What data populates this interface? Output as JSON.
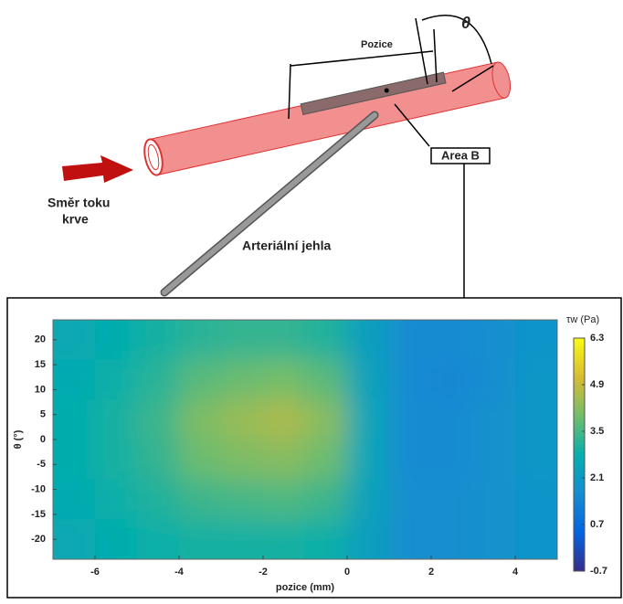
{
  "diagram": {
    "pozice": "Pozice",
    "theta": "θ",
    "area": "Area B",
    "flow_1": "Směr toku",
    "flow_2": "krve",
    "needle": "Arteriální jehla"
  },
  "chart_data": {
    "type": "heatmap",
    "x_label": "pozice (mm)",
    "y_label": "θ (°)",
    "colorbar_label": "τw (Pa)",
    "xlim": [
      -7,
      5
    ],
    "ylim": [
      -24,
      24
    ],
    "xticks": [
      -6,
      -4,
      -2,
      0,
      2,
      4
    ],
    "yticks": [
      20,
      15,
      10,
      5,
      0,
      -5,
      -10,
      -15,
      -20
    ],
    "clim": [
      -0.7,
      6.3
    ],
    "cticks": [
      6.3,
      4.9,
      3.5,
      2.1,
      0.7,
      -0.7
    ],
    "x": [
      -6.5,
      -5.5,
      -4.5,
      -3.5,
      -2.5,
      -1.5,
      -0.5,
      0.5,
      1.5,
      2.5,
      3.5,
      4.5
    ],
    "y": [
      20,
      12,
      4,
      -4,
      -12,
      -20
    ],
    "values": [
      [
        2.6,
        2.8,
        3.0,
        3.2,
        3.3,
        3.3,
        3.1,
        2.3,
        1.6,
        1.6,
        1.7,
        1.9
      ],
      [
        2.7,
        2.9,
        3.2,
        3.7,
        3.9,
        4.0,
        3.7,
        2.4,
        1.6,
        1.5,
        1.7,
        2.0
      ],
      [
        2.8,
        3.0,
        3.4,
        4.1,
        4.4,
        4.6,
        4.2,
        2.5,
        1.6,
        1.6,
        1.8,
        2.0
      ],
      [
        2.8,
        3.0,
        3.3,
        3.9,
        4.1,
        4.2,
        3.9,
        2.5,
        1.6,
        1.6,
        1.8,
        2.0
      ],
      [
        2.7,
        2.9,
        3.1,
        3.4,
        3.5,
        3.6,
        3.4,
        2.4,
        1.7,
        1.7,
        1.8,
        1.9
      ],
      [
        2.6,
        2.8,
        2.9,
        3.0,
        3.0,
        3.0,
        2.9,
        2.3,
        1.7,
        1.7,
        1.8,
        1.9
      ]
    ]
  }
}
